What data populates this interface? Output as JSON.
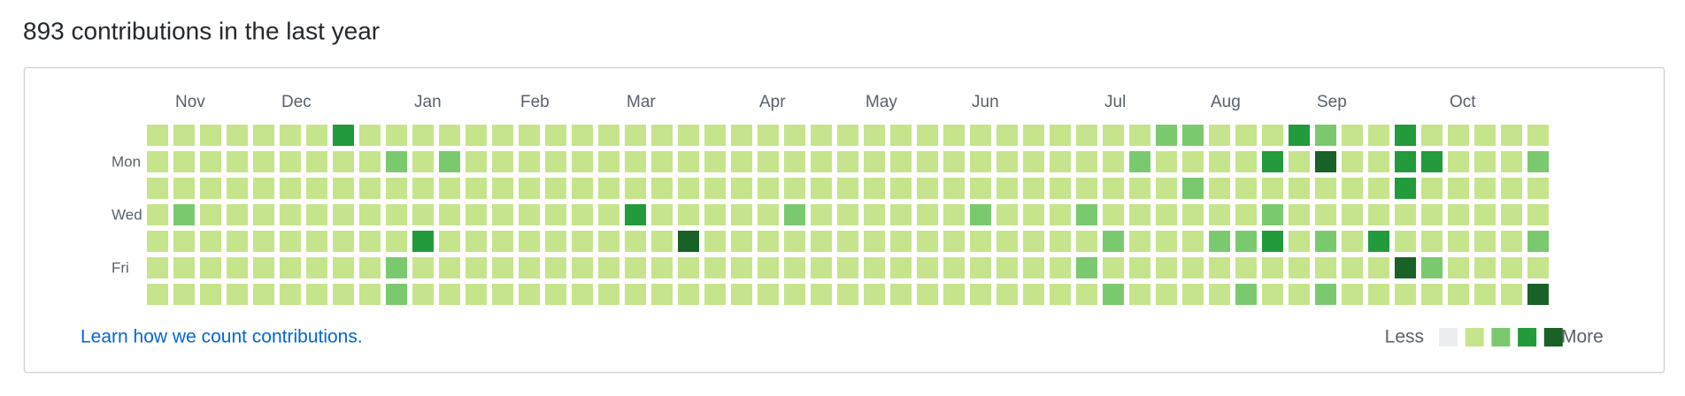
{
  "header": {
    "title": "893 contributions in the last year"
  },
  "calendar": {
    "months": [
      {
        "label": "Nov",
        "week": 1
      },
      {
        "label": "Dec",
        "week": 5
      },
      {
        "label": "Jan",
        "week": 10
      },
      {
        "label": "Feb",
        "week": 14
      },
      {
        "label": "Mar",
        "week": 18
      },
      {
        "label": "Apr",
        "week": 23
      },
      {
        "label": "May",
        "week": 27
      },
      {
        "label": "Jun",
        "week": 31
      },
      {
        "label": "Jul",
        "week": 36
      },
      {
        "label": "Aug",
        "week": 40
      },
      {
        "label": "Sep",
        "week": 44
      },
      {
        "label": "Oct",
        "week": 49
      }
    ],
    "days": [
      {
        "label": "Mon",
        "row": 1
      },
      {
        "label": "Wed",
        "row": 3
      },
      {
        "label": "Fri",
        "row": 5
      }
    ],
    "palette": [
      "#ebedf0",
      "#c6e48b",
      "#7bc96f",
      "#239a3b",
      "#196127"
    ],
    "weeks": [
      [
        1,
        1,
        1,
        1,
        1,
        1,
        1
      ],
      [
        1,
        1,
        1,
        2,
        1,
        1,
        1
      ],
      [
        1,
        1,
        1,
        1,
        1,
        1,
        1
      ],
      [
        1,
        1,
        1,
        1,
        1,
        1,
        1
      ],
      [
        1,
        1,
        1,
        1,
        1,
        1,
        1
      ],
      [
        1,
        1,
        1,
        1,
        1,
        1,
        1
      ],
      [
        1,
        1,
        1,
        1,
        1,
        1,
        1
      ],
      [
        3,
        1,
        1,
        1,
        1,
        1,
        1
      ],
      [
        1,
        1,
        1,
        1,
        1,
        1,
        1
      ],
      [
        1,
        2,
        1,
        1,
        1,
        2,
        2
      ],
      [
        1,
        1,
        1,
        1,
        3,
        1,
        1
      ],
      [
        1,
        2,
        1,
        1,
        1,
        1,
        1
      ],
      [
        1,
        1,
        1,
        1,
        1,
        1,
        1
      ],
      [
        1,
        1,
        1,
        1,
        1,
        1,
        1
      ],
      [
        1,
        1,
        1,
        1,
        1,
        1,
        1
      ],
      [
        1,
        1,
        1,
        1,
        1,
        1,
        1
      ],
      [
        1,
        1,
        1,
        1,
        1,
        1,
        1
      ],
      [
        1,
        1,
        1,
        1,
        1,
        1,
        1
      ],
      [
        1,
        1,
        1,
        3,
        1,
        1,
        1
      ],
      [
        1,
        1,
        1,
        1,
        1,
        1,
        1
      ],
      [
        1,
        1,
        1,
        1,
        4,
        1,
        1
      ],
      [
        1,
        1,
        1,
        1,
        1,
        1,
        1
      ],
      [
        1,
        1,
        1,
        1,
        1,
        1,
        1
      ],
      [
        1,
        1,
        1,
        1,
        1,
        1,
        1
      ],
      [
        1,
        1,
        1,
        2,
        1,
        1,
        1
      ],
      [
        1,
        1,
        1,
        1,
        1,
        1,
        1
      ],
      [
        1,
        1,
        1,
        1,
        1,
        1,
        1
      ],
      [
        1,
        1,
        1,
        1,
        1,
        1,
        1
      ],
      [
        1,
        1,
        1,
        1,
        1,
        1,
        1
      ],
      [
        1,
        1,
        1,
        1,
        1,
        1,
        1
      ],
      [
        1,
        1,
        1,
        1,
        1,
        1,
        1
      ],
      [
        1,
        1,
        1,
        2,
        1,
        1,
        1
      ],
      [
        1,
        1,
        1,
        1,
        1,
        1,
        1
      ],
      [
        1,
        1,
        1,
        1,
        1,
        1,
        1
      ],
      [
        1,
        1,
        1,
        1,
        1,
        1,
        1
      ],
      [
        1,
        1,
        1,
        2,
        1,
        2,
        1
      ],
      [
        1,
        1,
        1,
        1,
        2,
        1,
        2
      ],
      [
        1,
        2,
        1,
        1,
        1,
        1,
        1
      ],
      [
        2,
        1,
        1,
        1,
        1,
        1,
        1
      ],
      [
        2,
        1,
        2,
        1,
        1,
        1,
        1
      ],
      [
        1,
        1,
        1,
        1,
        2,
        1,
        1
      ],
      [
        1,
        1,
        1,
        1,
        2,
        1,
        2
      ],
      [
        1,
        3,
        1,
        2,
        3,
        1,
        1
      ],
      [
        3,
        1,
        1,
        1,
        1,
        1,
        1
      ],
      [
        2,
        4,
        1,
        1,
        2,
        1,
        2
      ],
      [
        1,
        1,
        1,
        1,
        1,
        1,
        1
      ],
      [
        1,
        1,
        1,
        1,
        3,
        1,
        1
      ],
      [
        3,
        3,
        3,
        1,
        1,
        4,
        1
      ],
      [
        1,
        3,
        1,
        1,
        1,
        2,
        1
      ],
      [
        1,
        1,
        1,
        1,
        1,
        1,
        1
      ],
      [
        1,
        1,
        1,
        1,
        1,
        1,
        1
      ],
      [
        1,
        1,
        1,
        1,
        1,
        1,
        1
      ],
      [
        1,
        2,
        1,
        1,
        2,
        1,
        4
      ]
    ]
  },
  "footer": {
    "link": "Learn how we count contributions.",
    "less": "Less",
    "more": "More"
  }
}
